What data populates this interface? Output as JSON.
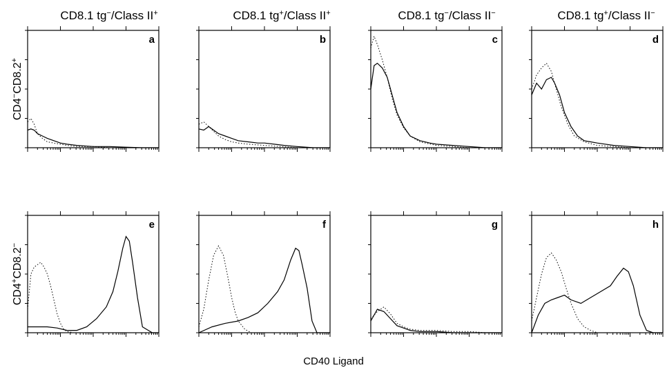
{
  "column_titles": [
    {
      "base": "CD8.1 tg",
      "sup1": "−",
      "mid": "/Class II",
      "sup2": "+"
    },
    {
      "base": "CD8.1 tg",
      "sup1": "+",
      "mid": "/Class II",
      "sup2": "+"
    },
    {
      "base": "CD8.1 tg",
      "sup1": "−",
      "mid": "/Class II",
      "sup2": "−"
    },
    {
      "base": "CD8.1 tg",
      "sup1": "+",
      "mid": "/Class II",
      "sup2": "−"
    }
  ],
  "row_labels": [
    {
      "a": "CD4",
      "sa": "−",
      "b": "CD8.2",
      "sb": "+"
    },
    {
      "a": "CD4",
      "sa": "+",
      "b": "CD8.2",
      "sb": "−"
    }
  ],
  "xlabel": "CD40 Ligand",
  "chart_data": {
    "type": "line",
    "x_scale": "log",
    "x_decades": 4,
    "y_range": [
      0,
      1
    ],
    "panels": [
      {
        "letter": "a",
        "row": 0,
        "col": 0,
        "series": [
          {
            "style": "solid",
            "x": [
              0.0,
              0.1,
              0.2,
              0.3,
              0.45,
              0.6,
              0.8,
              1.0,
              1.2,
              1.5,
              2.0,
              2.5,
              3.0,
              3.5,
              4.0
            ],
            "y": [
              0.15,
              0.16,
              0.15,
              0.12,
              0.1,
              0.08,
              0.06,
              0.04,
              0.03,
              0.02,
              0.01,
              0.01,
              0.005,
              0.0,
              0.0
            ]
          },
          {
            "style": "dotted",
            "x": [
              0.0,
              0.1,
              0.2,
              0.3,
              0.45,
              0.6,
              0.8,
              1.0,
              1.2,
              1.5,
              2.0,
              2.5,
              3.0,
              3.5,
              4.0
            ],
            "y": [
              0.22,
              0.25,
              0.2,
              0.12,
              0.08,
              0.05,
              0.04,
              0.03,
              0.02,
              0.01,
              0.01,
              0.0,
              0.0,
              0.0,
              0.0
            ]
          }
        ]
      },
      {
        "letter": "b",
        "row": 0,
        "col": 1,
        "series": [
          {
            "style": "solid",
            "x": [
              0.0,
              0.15,
              0.3,
              0.45,
              0.6,
              0.8,
              1.0,
              1.2,
              1.5,
              1.8,
              2.0,
              2.3,
              2.6,
              3.0,
              3.5,
              4.0
            ],
            "y": [
              0.16,
              0.15,
              0.18,
              0.15,
              0.12,
              0.1,
              0.08,
              0.06,
              0.05,
              0.04,
              0.04,
              0.03,
              0.02,
              0.01,
              0.0,
              0.0
            ]
          },
          {
            "style": "dotted",
            "x": [
              0.0,
              0.15,
              0.3,
              0.45,
              0.6,
              0.8,
              1.0,
              1.2,
              1.5,
              2.0,
              2.5,
              3.0,
              4.0
            ],
            "y": [
              0.2,
              0.22,
              0.18,
              0.14,
              0.1,
              0.07,
              0.05,
              0.04,
              0.03,
              0.02,
              0.01,
              0.0,
              0.0
            ]
          }
        ]
      },
      {
        "letter": "c",
        "row": 0,
        "col": 2,
        "series": [
          {
            "style": "solid",
            "x": [
              0.0,
              0.1,
              0.2,
              0.35,
              0.5,
              0.65,
              0.8,
              1.0,
              1.2,
              1.5,
              1.8,
              2.0,
              2.5,
              3.0,
              3.5,
              4.0
            ],
            "y": [
              0.5,
              0.7,
              0.72,
              0.68,
              0.6,
              0.45,
              0.3,
              0.18,
              0.1,
              0.06,
              0.04,
              0.03,
              0.02,
              0.01,
              0.0,
              0.0
            ]
          },
          {
            "style": "dotted",
            "x": [
              0.0,
              0.1,
              0.2,
              0.35,
              0.5,
              0.65,
              0.8,
              1.0,
              1.2,
              1.5,
              2.0,
              2.5,
              3.0,
              4.0
            ],
            "y": [
              0.85,
              0.95,
              0.88,
              0.75,
              0.6,
              0.42,
              0.28,
              0.17,
              0.1,
              0.05,
              0.02,
              0.01,
              0.0,
              0.0
            ]
          }
        ]
      },
      {
        "letter": "d",
        "row": 0,
        "col": 3,
        "series": [
          {
            "style": "solid",
            "x": [
              0.0,
              0.15,
              0.3,
              0.45,
              0.6,
              0.7,
              0.85,
              1.0,
              1.2,
              1.4,
              1.6,
              1.8,
              2.0,
              2.5,
              3.0,
              3.5,
              4.0
            ],
            "y": [
              0.45,
              0.55,
              0.5,
              0.58,
              0.6,
              0.55,
              0.45,
              0.3,
              0.18,
              0.1,
              0.06,
              0.05,
              0.04,
              0.02,
              0.01,
              0.0,
              0.0
            ]
          },
          {
            "style": "dotted",
            "x": [
              0.0,
              0.15,
              0.3,
              0.45,
              0.6,
              0.75,
              0.9,
              1.1,
              1.3,
              1.6,
              2.0,
              2.5,
              3.0,
              4.0
            ],
            "y": [
              0.5,
              0.62,
              0.68,
              0.72,
              0.65,
              0.5,
              0.35,
              0.2,
              0.1,
              0.05,
              0.02,
              0.01,
              0.0,
              0.0
            ]
          }
        ]
      },
      {
        "letter": "e",
        "row": 1,
        "col": 0,
        "series": [
          {
            "style": "solid",
            "x": [
              0.0,
              0.3,
              0.6,
              0.9,
              1.2,
              1.5,
              1.8,
              2.1,
              2.4,
              2.6,
              2.75,
              2.9,
              3.0,
              3.1,
              3.2,
              3.35,
              3.5,
              3.8,
              4.0
            ],
            "y": [
              0.05,
              0.05,
              0.05,
              0.04,
              0.02,
              0.02,
              0.05,
              0.12,
              0.22,
              0.35,
              0.52,
              0.72,
              0.82,
              0.78,
              0.6,
              0.3,
              0.05,
              0.0,
              0.0
            ]
          },
          {
            "style": "dotted",
            "x": [
              0.0,
              0.1,
              0.2,
              0.3,
              0.4,
              0.5,
              0.6,
              0.7,
              0.8,
              0.9,
              1.0,
              1.1,
              1.2,
              1.4,
              1.6,
              2.0,
              4.0
            ],
            "y": [
              0.2,
              0.5,
              0.56,
              0.58,
              0.6,
              0.56,
              0.5,
              0.4,
              0.28,
              0.16,
              0.08,
              0.03,
              0.01,
              0.0,
              0.0,
              0.0,
              0.0
            ]
          }
        ]
      },
      {
        "letter": "f",
        "row": 1,
        "col": 1,
        "series": [
          {
            "style": "solid",
            "x": [
              0.0,
              0.4,
              0.8,
              1.2,
              1.5,
              1.8,
              2.1,
              2.4,
              2.6,
              2.8,
              2.95,
              3.05,
              3.15,
              3.3,
              3.45,
              3.6,
              3.8,
              4.0
            ],
            "y": [
              0.0,
              0.05,
              0.08,
              0.1,
              0.13,
              0.17,
              0.25,
              0.35,
              0.45,
              0.62,
              0.72,
              0.7,
              0.58,
              0.38,
              0.1,
              0.0,
              0.0,
              0.0
            ]
          },
          {
            "style": "dotted",
            "x": [
              0.0,
              0.15,
              0.3,
              0.45,
              0.6,
              0.75,
              0.9,
              1.0,
              1.1,
              1.2,
              1.4,
              1.6,
              2.0,
              4.0
            ],
            "y": [
              0.05,
              0.2,
              0.45,
              0.66,
              0.74,
              0.66,
              0.45,
              0.3,
              0.18,
              0.1,
              0.03,
              0.0,
              0.0,
              0.0
            ]
          }
        ]
      },
      {
        "letter": "g",
        "row": 1,
        "col": 2,
        "series": [
          {
            "style": "solid",
            "x": [
              0.0,
              0.2,
              0.4,
              0.6,
              0.8,
              1.0,
              1.2,
              1.5,
              2.0,
              2.5,
              3.0,
              3.5,
              4.0
            ],
            "y": [
              0.1,
              0.2,
              0.18,
              0.12,
              0.06,
              0.04,
              0.02,
              0.01,
              0.01,
              0.0,
              0.0,
              0.0,
              0.0
            ]
          },
          {
            "style": "dotted",
            "x": [
              0.0,
              0.2,
              0.4,
              0.6,
              0.8,
              1.0,
              1.2,
              1.5,
              2.0,
              2.5,
              3.0,
              3.5,
              4.0
            ],
            "y": [
              0.12,
              0.18,
              0.22,
              0.16,
              0.08,
              0.05,
              0.03,
              0.02,
              0.02,
              0.01,
              0.01,
              0.0,
              0.0
            ]
          }
        ]
      },
      {
        "letter": "h",
        "row": 1,
        "col": 3,
        "series": [
          {
            "style": "solid",
            "x": [
              0.0,
              0.2,
              0.4,
              0.6,
              0.8,
              1.0,
              1.2,
              1.5,
              1.8,
              2.1,
              2.4,
              2.6,
              2.8,
              2.95,
              3.1,
              3.3,
              3.5,
              3.7,
              4.0
            ],
            "y": [
              0.0,
              0.15,
              0.25,
              0.28,
              0.3,
              0.32,
              0.28,
              0.25,
              0.3,
              0.35,
              0.4,
              0.48,
              0.55,
              0.52,
              0.4,
              0.15,
              0.02,
              0.0,
              0.0
            ]
          },
          {
            "style": "dotted",
            "x": [
              0.0,
              0.15,
              0.3,
              0.45,
              0.6,
              0.75,
              0.9,
              1.05,
              1.2,
              1.4,
              1.6,
              1.8,
              2.0,
              4.0
            ],
            "y": [
              0.1,
              0.3,
              0.5,
              0.64,
              0.68,
              0.62,
              0.52,
              0.38,
              0.25,
              0.12,
              0.05,
              0.02,
              0.0,
              0.0
            ]
          }
        ]
      }
    ]
  }
}
